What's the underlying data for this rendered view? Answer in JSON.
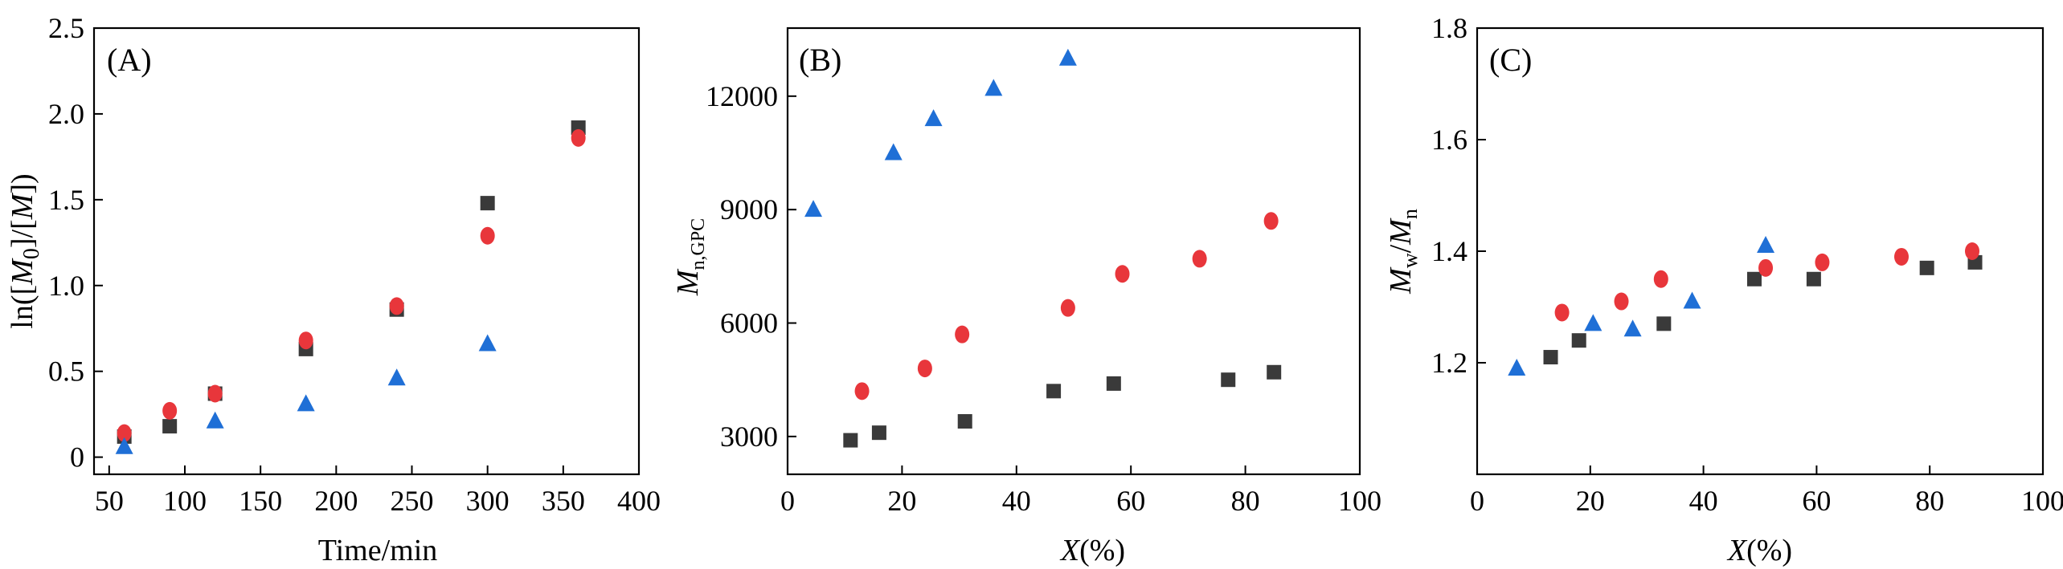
{
  "colors": {
    "square": "#3a3a3a",
    "circle": "#e8363b",
    "triangle": "#1f6fd6"
  },
  "chart_data": [
    {
      "type": "scatter",
      "panel_label": "(A)",
      "xlabel": "Time/min",
      "ylabel": "ln([M0]/[M])",
      "ylabel_parts": {
        "pre": "ln([",
        "m0": "M",
        "sub0": "0",
        "mid": "]/[",
        "m": "M",
        "post": "])"
      },
      "xlim": [
        40,
        400
      ],
      "ylim": [
        -0.1,
        2.5
      ],
      "xticks": [
        "50",
        "100",
        "150",
        "200",
        "250",
        "300",
        "350",
        "400"
      ],
      "xtick_values": [
        50,
        100,
        150,
        200,
        250,
        300,
        350,
        400
      ],
      "yticks": [
        "0",
        "0.5",
        "1.0",
        "1.5",
        "2.0",
        "2.5"
      ],
      "ytick_values": [
        0,
        0.5,
        1.0,
        1.5,
        2.0,
        2.5
      ],
      "series": [
        {
          "name": "square",
          "marker": "square",
          "x": [
            60,
            90,
            120,
            180,
            240,
            300,
            360
          ],
          "y": [
            0.12,
            0.18,
            0.37,
            0.63,
            0.86,
            1.48,
            1.92
          ]
        },
        {
          "name": "circle",
          "marker": "circle",
          "x": [
            60,
            90,
            120,
            180,
            240,
            300,
            360
          ],
          "y": [
            0.14,
            0.27,
            0.37,
            0.68,
            0.88,
            1.29,
            1.86
          ]
        },
        {
          "name": "triangle",
          "marker": "triangle",
          "x": [
            60,
            120,
            180,
            240,
            300
          ],
          "y": [
            0.06,
            0.21,
            0.31,
            0.46,
            0.66
          ]
        }
      ]
    },
    {
      "type": "scatter",
      "panel_label": "(B)",
      "xlabel": "X(%)",
      "xlabel_parts": {
        "var": "X",
        "rest": "(%)"
      },
      "ylabel": "Mn,GPC",
      "ylabel_parts": {
        "var": "M",
        "sub": "n,GPC"
      },
      "xlim": [
        0,
        100
      ],
      "ylim": [
        2000,
        13800
      ],
      "xticks": [
        "0",
        "20",
        "40",
        "60",
        "80",
        "100"
      ],
      "xtick_values": [
        0,
        20,
        40,
        60,
        80,
        100
      ],
      "yticks": [
        "3000",
        "6000",
        "9000",
        "12000"
      ],
      "ytick_values": [
        3000,
        6000,
        9000,
        12000
      ],
      "series": [
        {
          "name": "square",
          "marker": "square",
          "x": [
            11,
            16,
            31,
            46.5,
            57,
            77,
            85
          ],
          "y": [
            2900,
            3100,
            3400,
            4200,
            4400,
            4500,
            4700
          ]
        },
        {
          "name": "circle",
          "marker": "circle",
          "x": [
            13,
            24,
            30.5,
            49,
            58.5,
            72,
            84.5
          ],
          "y": [
            4200,
            4800,
            5700,
            6400,
            7300,
            7700,
            8700
          ]
        },
        {
          "name": "triangle",
          "marker": "triangle",
          "x": [
            4.5,
            18.5,
            25.5,
            36,
            49
          ],
          "y": [
            9000,
            10500,
            11400,
            12200,
            13000
          ]
        }
      ]
    },
    {
      "type": "scatter",
      "panel_label": "(C)",
      "xlabel": "X(%)",
      "xlabel_parts": {
        "var": "X",
        "rest": "(%)"
      },
      "ylabel": "Mw/Mn",
      "ylabel_parts": {
        "v1": "M",
        "s1": "w",
        "slash": "/",
        "v2": "M",
        "s2": "n"
      },
      "xlim": [
        0,
        100
      ],
      "ylim": [
        1.0,
        1.8
      ],
      "xticks": [
        "0",
        "20",
        "40",
        "60",
        "80",
        "100"
      ],
      "xtick_values": [
        0,
        20,
        40,
        60,
        80,
        100
      ],
      "yticks": [
        "1.2",
        "1.4",
        "1.6",
        "1.8"
      ],
      "ytick_values": [
        1.2,
        1.4,
        1.6,
        1.8
      ],
      "series": [
        {
          "name": "square",
          "marker": "square",
          "x": [
            13,
            18,
            33,
            49,
            59.5,
            79.5,
            88
          ],
          "y": [
            1.21,
            1.24,
            1.27,
            1.35,
            1.35,
            1.37,
            1.38
          ]
        },
        {
          "name": "circle",
          "marker": "circle",
          "x": [
            15,
            25.5,
            32.5,
            51,
            61,
            75,
            87.5
          ],
          "y": [
            1.29,
            1.31,
            1.35,
            1.37,
            1.38,
            1.39,
            1.4
          ]
        },
        {
          "name": "triangle",
          "marker": "triangle",
          "x": [
            7,
            20.5,
            27.5,
            38,
            51
          ],
          "y": [
            1.19,
            1.27,
            1.26,
            1.31,
            1.41
          ]
        }
      ]
    }
  ]
}
